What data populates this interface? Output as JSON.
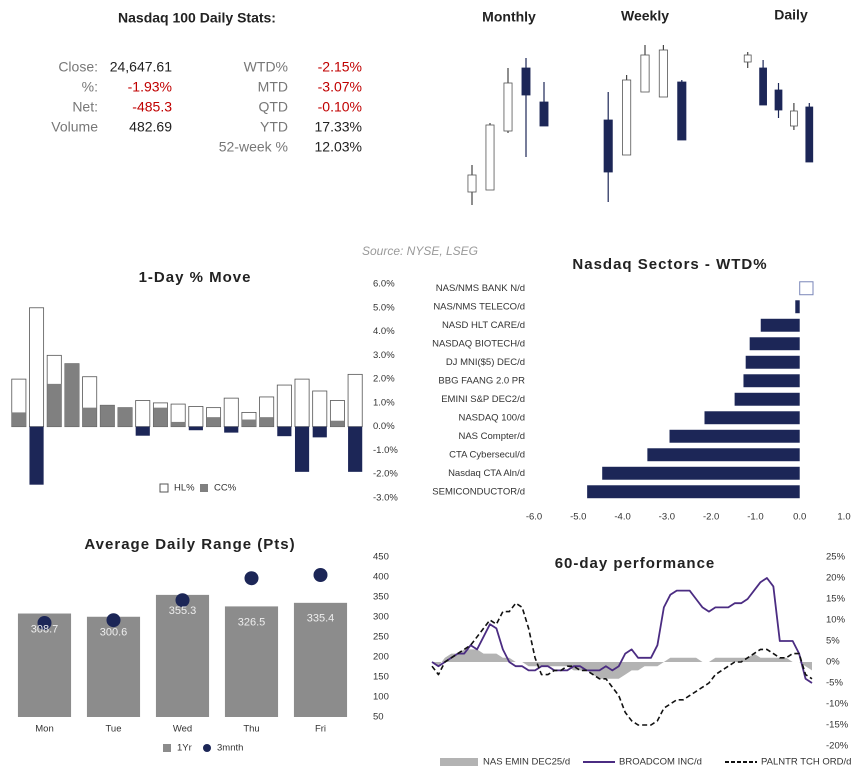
{
  "stats": {
    "title": "Nasdaq 100 Daily Stats:",
    "left": [
      [
        "Close:",
        "24,647.61"
      ],
      [
        "%:",
        "-1.93%"
      ],
      [
        "Net:",
        "-485.3"
      ],
      [
        "Volume",
        "482.69"
      ]
    ],
    "right": [
      [
        "WTD%",
        "-2.15%"
      ],
      [
        "MTD",
        "-3.07%"
      ],
      [
        "QTD",
        "-0.10%"
      ],
      [
        "YTD",
        "17.33%"
      ],
      [
        "52-week %",
        "12.03%"
      ]
    ]
  },
  "source": "Source: NYSE, LSEG",
  "chart_data": [
    {
      "type": "candlestick",
      "title": "Monthly",
      "categories": [
        null,
        null,
        null,
        null,
        null
      ],
      "open": [
        58,
        60,
        119,
        182,
        148
      ],
      "high": [
        85,
        127,
        182,
        192,
        168
      ],
      "low": [
        45,
        60,
        117,
        93,
        124
      ],
      "close": [
        75,
        125,
        167,
        155,
        124
      ],
      "ylim": [
        40,
        210
      ],
      "up_color": "#ffffff",
      "down_color": "#1c2657"
    },
    {
      "type": "candlestick",
      "title": "Weekly",
      "categories": [
        null,
        null,
        null,
        null,
        null
      ],
      "open": [
        130,
        95,
        158,
        153,
        168
      ],
      "high": [
        158,
        175,
        205,
        205,
        170
      ],
      "low": [
        48,
        95,
        158,
        153,
        110
      ],
      "close": [
        78,
        170,
        195,
        200,
        110
      ],
      "ylim": [
        40,
        210
      ],
      "up_color": "#ffffff",
      "down_color": "#1c2657"
    },
    {
      "type": "candlestick",
      "title": "Daily",
      "categories": [
        null,
        null,
        null,
        null,
        null
      ],
      "open": [
        188,
        182,
        160,
        124,
        143
      ],
      "high": [
        198,
        190,
        167,
        147,
        147
      ],
      "low": [
        182,
        145,
        132,
        120,
        88
      ],
      "close": [
        195,
        145,
        140,
        139,
        88
      ],
      "ylim": [
        40,
        210
      ],
      "up_color": "#ffffff",
      "down_color": "#1c2657"
    },
    {
      "type": "bar",
      "title": "1-Day % Move",
      "categories": [
        null,
        null,
        null,
        null,
        null,
        null,
        null,
        null,
        null,
        null,
        null,
        null,
        null,
        null,
        null,
        null,
        null,
        null,
        null,
        null
      ],
      "series": [
        {
          "name": "HL%",
          "color": "#ffffff",
          "style": "outline",
          "values": [
            2.0,
            5.0,
            3.0,
            2.65,
            2.1,
            0.9,
            0.8,
            1.1,
            1.0,
            0.95,
            0.85,
            0.8,
            1.2,
            0.6,
            1.25,
            1.75,
            2.0,
            1.5,
            1.1,
            2.2
          ]
        },
        {
          "name": "CC%",
          "color": "#808080",
          "negative_color": "#1c2657",
          "style": "bar",
          "values": [
            0.6,
            -2.44,
            1.8,
            2.65,
            0.8,
            0.9,
            0.8,
            -0.38,
            0.8,
            0.2,
            -0.15,
            0.4,
            -0.25,
            0.3,
            0.4,
            -0.4,
            -1.9,
            -0.45,
            0.25,
            -1.9
          ]
        }
      ],
      "ylim": [
        -3,
        6
      ],
      "yticks": [
        {
          "value": 6,
          "label": "6.0%"
        },
        {
          "value": 5,
          "label": "5.0%"
        },
        {
          "value": 4,
          "label": "4.0%"
        },
        {
          "value": 3,
          "label": "3.0%"
        },
        {
          "value": 2,
          "label": "2.0%"
        },
        {
          "value": 1,
          "label": "1.0%"
        },
        {
          "value": 0,
          "label": "0.0%"
        },
        {
          "value": -1,
          "label": "-1.0%"
        },
        {
          "value": -2,
          "label": "-2.0%"
        },
        {
          "value": -3,
          "label": "-3.0%"
        }
      ]
    },
    {
      "type": "hbar",
      "title": "Nasdaq Sectors - WTD%",
      "categories": [
        "NAS/NMS BANK N/d",
        "NAS/NMS TELECO/d",
        "NASD HLT CARE/d",
        "NASDAQ BIOTECH/d",
        "DJ MNI($5) DEC/d",
        "BBG FAANG 2.0 PR",
        "EMINI S&P DEC2/d",
        "NASDAQ 100/d",
        "NAS Compter/d",
        "CTA Cybersecul/d",
        "Nasdaq CTA Aln/d",
        "SEMICONDUCTOR/d"
      ],
      "values": [
        0.3,
        -0.1,
        -0.88,
        -1.13,
        -1.22,
        -1.27,
        -1.47,
        -2.15,
        -2.94,
        -3.44,
        -4.46,
        -4.8
      ],
      "color": "#1c2657",
      "positive_color": "#ffffff",
      "xlim": [
        -6,
        1
      ],
      "xticks": [
        {
          "value": -6,
          "label": "-6.0"
        },
        {
          "value": -5,
          "label": "-5.0"
        },
        {
          "value": -4,
          "label": "-4.0"
        },
        {
          "value": -3,
          "label": "-3.0"
        },
        {
          "value": -2,
          "label": "-2.0"
        },
        {
          "value": -1,
          "label": "-1.0"
        },
        {
          "value": 0,
          "label": "0.0"
        },
        {
          "value": 1,
          "label": "1.0"
        }
      ]
    },
    {
      "type": "bar_dot",
      "title": "Average Daily Range (Pts)",
      "categories": [
        "Mon",
        "Tue",
        "Wed",
        "Thu",
        "Fri"
      ],
      "series": [
        {
          "name": "1Yr",
          "color": "#8c8c8c",
          "style": "bar",
          "values": [
            308.7,
            300.6,
            355.3,
            326.5,
            335.4
          ]
        },
        {
          "name": "3mnth",
          "color": "#1c2657",
          "style": "dot",
          "values": [
            285,
            292,
            342,
            397,
            405
          ]
        }
      ],
      "ylim": [
        50,
        450
      ],
      "yticks": [
        450,
        400,
        350,
        300,
        250,
        200,
        150,
        100,
        50
      ]
    },
    {
      "type": "line",
      "title": "60-day performance",
      "categories": [
        null,
        null,
        null,
        null,
        null,
        null,
        null,
        null,
        null,
        null,
        null,
        null,
        null,
        null,
        null,
        null,
        null,
        null,
        null,
        null,
        null,
        null,
        null,
        null,
        null,
        null,
        null,
        null,
        null,
        null,
        null,
        null,
        null,
        null,
        null,
        null,
        null,
        null,
        null,
        null,
        null,
        null,
        null,
        null,
        null,
        null,
        null,
        null,
        null,
        null,
        null,
        null,
        null,
        null,
        null,
        null,
        null,
        null,
        null,
        null
      ],
      "series": [
        {
          "name": "NAS EMIN DEC25/d",
          "color": "#b3b3b3",
          "style": "area",
          "values": [
            0,
            -1,
            1,
            2,
            2,
            3,
            3,
            3,
            2,
            2,
            2,
            1,
            1,
            0,
            0,
            -1,
            -1,
            -1,
            -1,
            -1,
            -1,
            -1,
            -2,
            -2,
            -2,
            -3,
            -4,
            -4,
            -4,
            -4,
            -3,
            -2,
            -2,
            -1,
            -1,
            -1,
            0,
            1,
            1,
            1,
            1,
            1,
            0,
            0,
            1,
            1,
            1,
            1,
            1,
            1,
            2,
            1,
            1,
            1,
            1,
            1,
            0,
            0,
            -1,
            -2
          ]
        },
        {
          "name": "BROADCOM INC/d",
          "color": "#4b2c82",
          "style": "line",
          "values": [
            0,
            -1,
            0,
            1,
            2,
            2,
            4,
            3,
            6,
            9,
            8,
            3,
            0,
            -1,
            -1,
            -2,
            -2,
            -1,
            -1,
            -2,
            -2,
            -2,
            -1,
            -1,
            -2,
            -2,
            -2,
            -1,
            -2,
            -1,
            2,
            3,
            1,
            1,
            1,
            4,
            13,
            16,
            17,
            17,
            17,
            15,
            13,
            12,
            13,
            13,
            13,
            14,
            14,
            15,
            17,
            19,
            20,
            18,
            5,
            5,
            5,
            2,
            -4,
            -5
          ]
        },
        {
          "name": "PALNTR TCH ORD/d",
          "color": "#111111",
          "style": "dashed",
          "values": [
            -1,
            -3,
            0,
            1,
            2,
            3,
            4,
            6,
            8,
            10,
            9,
            12,
            12,
            14,
            13,
            8,
            1,
            -3,
            -3,
            -2,
            -2,
            -1,
            -1,
            -2,
            -2,
            -3,
            -4,
            -4,
            -6,
            -8,
            -12,
            -14,
            -15,
            -15,
            -15,
            -14,
            -11,
            -10,
            -9,
            -9,
            -8,
            -7,
            -6,
            -5,
            -3,
            -2,
            -1,
            0,
            0,
            1,
            2,
            3,
            3,
            2,
            1,
            1,
            2,
            2,
            -3,
            -4
          ]
        }
      ],
      "ylim": [
        -20,
        25
      ],
      "yticks": [
        {
          "value": 25,
          "label": "25%"
        },
        {
          "value": 20,
          "label": "20%"
        },
        {
          "value": 15,
          "label": "15%"
        },
        {
          "value": 10,
          "label": "10%"
        },
        {
          "value": 5,
          "label": "5%"
        },
        {
          "value": 0,
          "label": "0%"
        },
        {
          "value": -5,
          "label": "-5%"
        },
        {
          "value": -10,
          "label": "-10%"
        },
        {
          "value": -15,
          "label": "-15%"
        },
        {
          "value": -20,
          "label": "-20%"
        }
      ]
    }
  ]
}
